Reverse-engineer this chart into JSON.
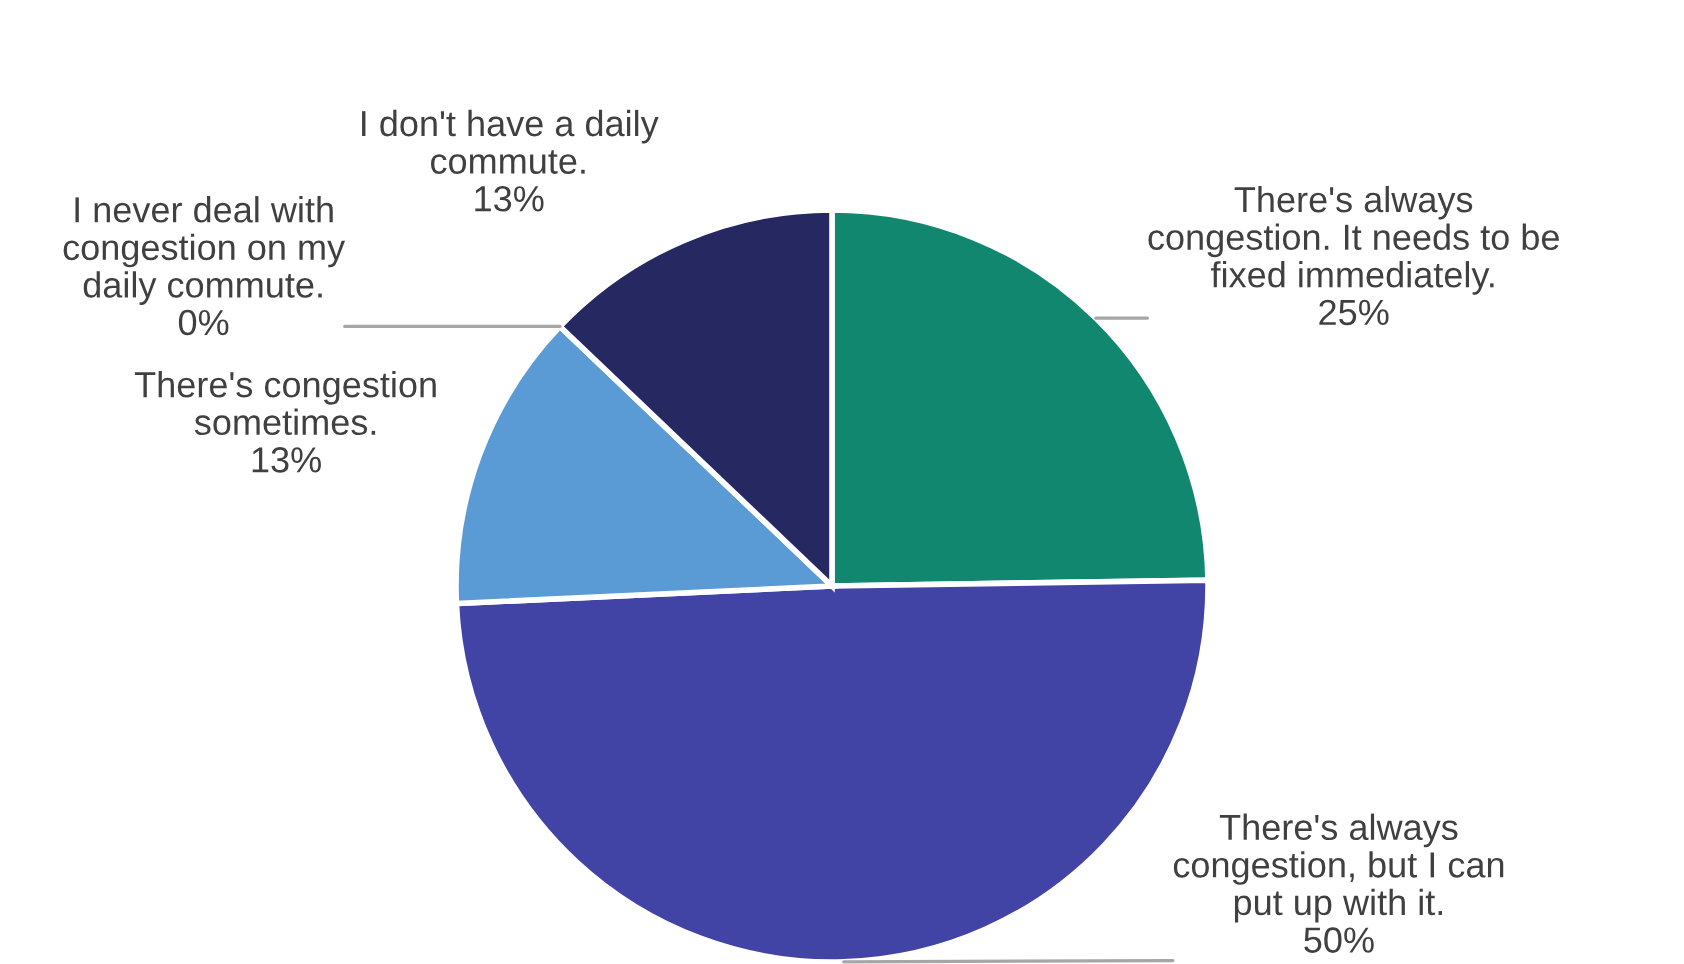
{
  "chart_data": {
    "type": "pie",
    "categories": [
      "There's always\ncongestion. It needs to be\nfixed immediately.",
      "There's always\ncongestion, but I can\nput up with it.",
      "There's congestion\nsometimes.",
      "I never deal with\ncongestion on my\ndaily commute.",
      "I don't have a daily\ncommute."
    ],
    "values": [
      25,
      50,
      13,
      0,
      13
    ],
    "value_labels": [
      "25%",
      "50%",
      "13%",
      "0%",
      "13%"
    ],
    "colors": [
      "#12876f",
      "#4143a5",
      "#5b9bd5",
      "#3a5fa0",
      "#262862"
    ]
  }
}
